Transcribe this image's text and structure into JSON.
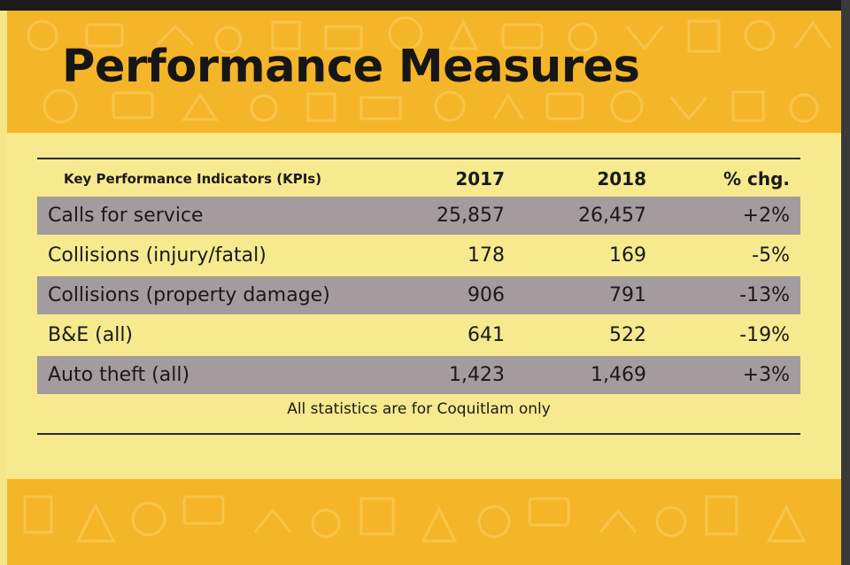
{
  "title": "Performance Measures",
  "table": {
    "headers": {
      "kpi": "Key Performance Indicators (KPIs)",
      "y2017": "2017",
      "y2018": "2018",
      "chg": "% chg."
    },
    "rows": [
      {
        "kpi": "Calls for service",
        "y2017": "25,857",
        "y2018": "26,457",
        "chg": "+2%"
      },
      {
        "kpi": "Collisions (injury/fatal)",
        "y2017": "178",
        "y2018": "169",
        "chg": "-5%"
      },
      {
        "kpi": "Collisions (property damage)",
        "y2017": "906",
        "y2018": "791",
        "chg": "-13%"
      },
      {
        "kpi": "B&E (all)",
        "y2017": "641",
        "y2018": "522",
        "chg": "-19%"
      },
      {
        "kpi": "Auto theft (all)",
        "y2017": "1,423",
        "y2018": "1,469",
        "chg": "+3%"
      }
    ],
    "note": "All statistics are for Coquitlam only"
  },
  "colors": {
    "band": "#f5b528",
    "panel": "#f7e98e",
    "row_shade": "#a49b9f",
    "text": "#1a1a1a"
  }
}
